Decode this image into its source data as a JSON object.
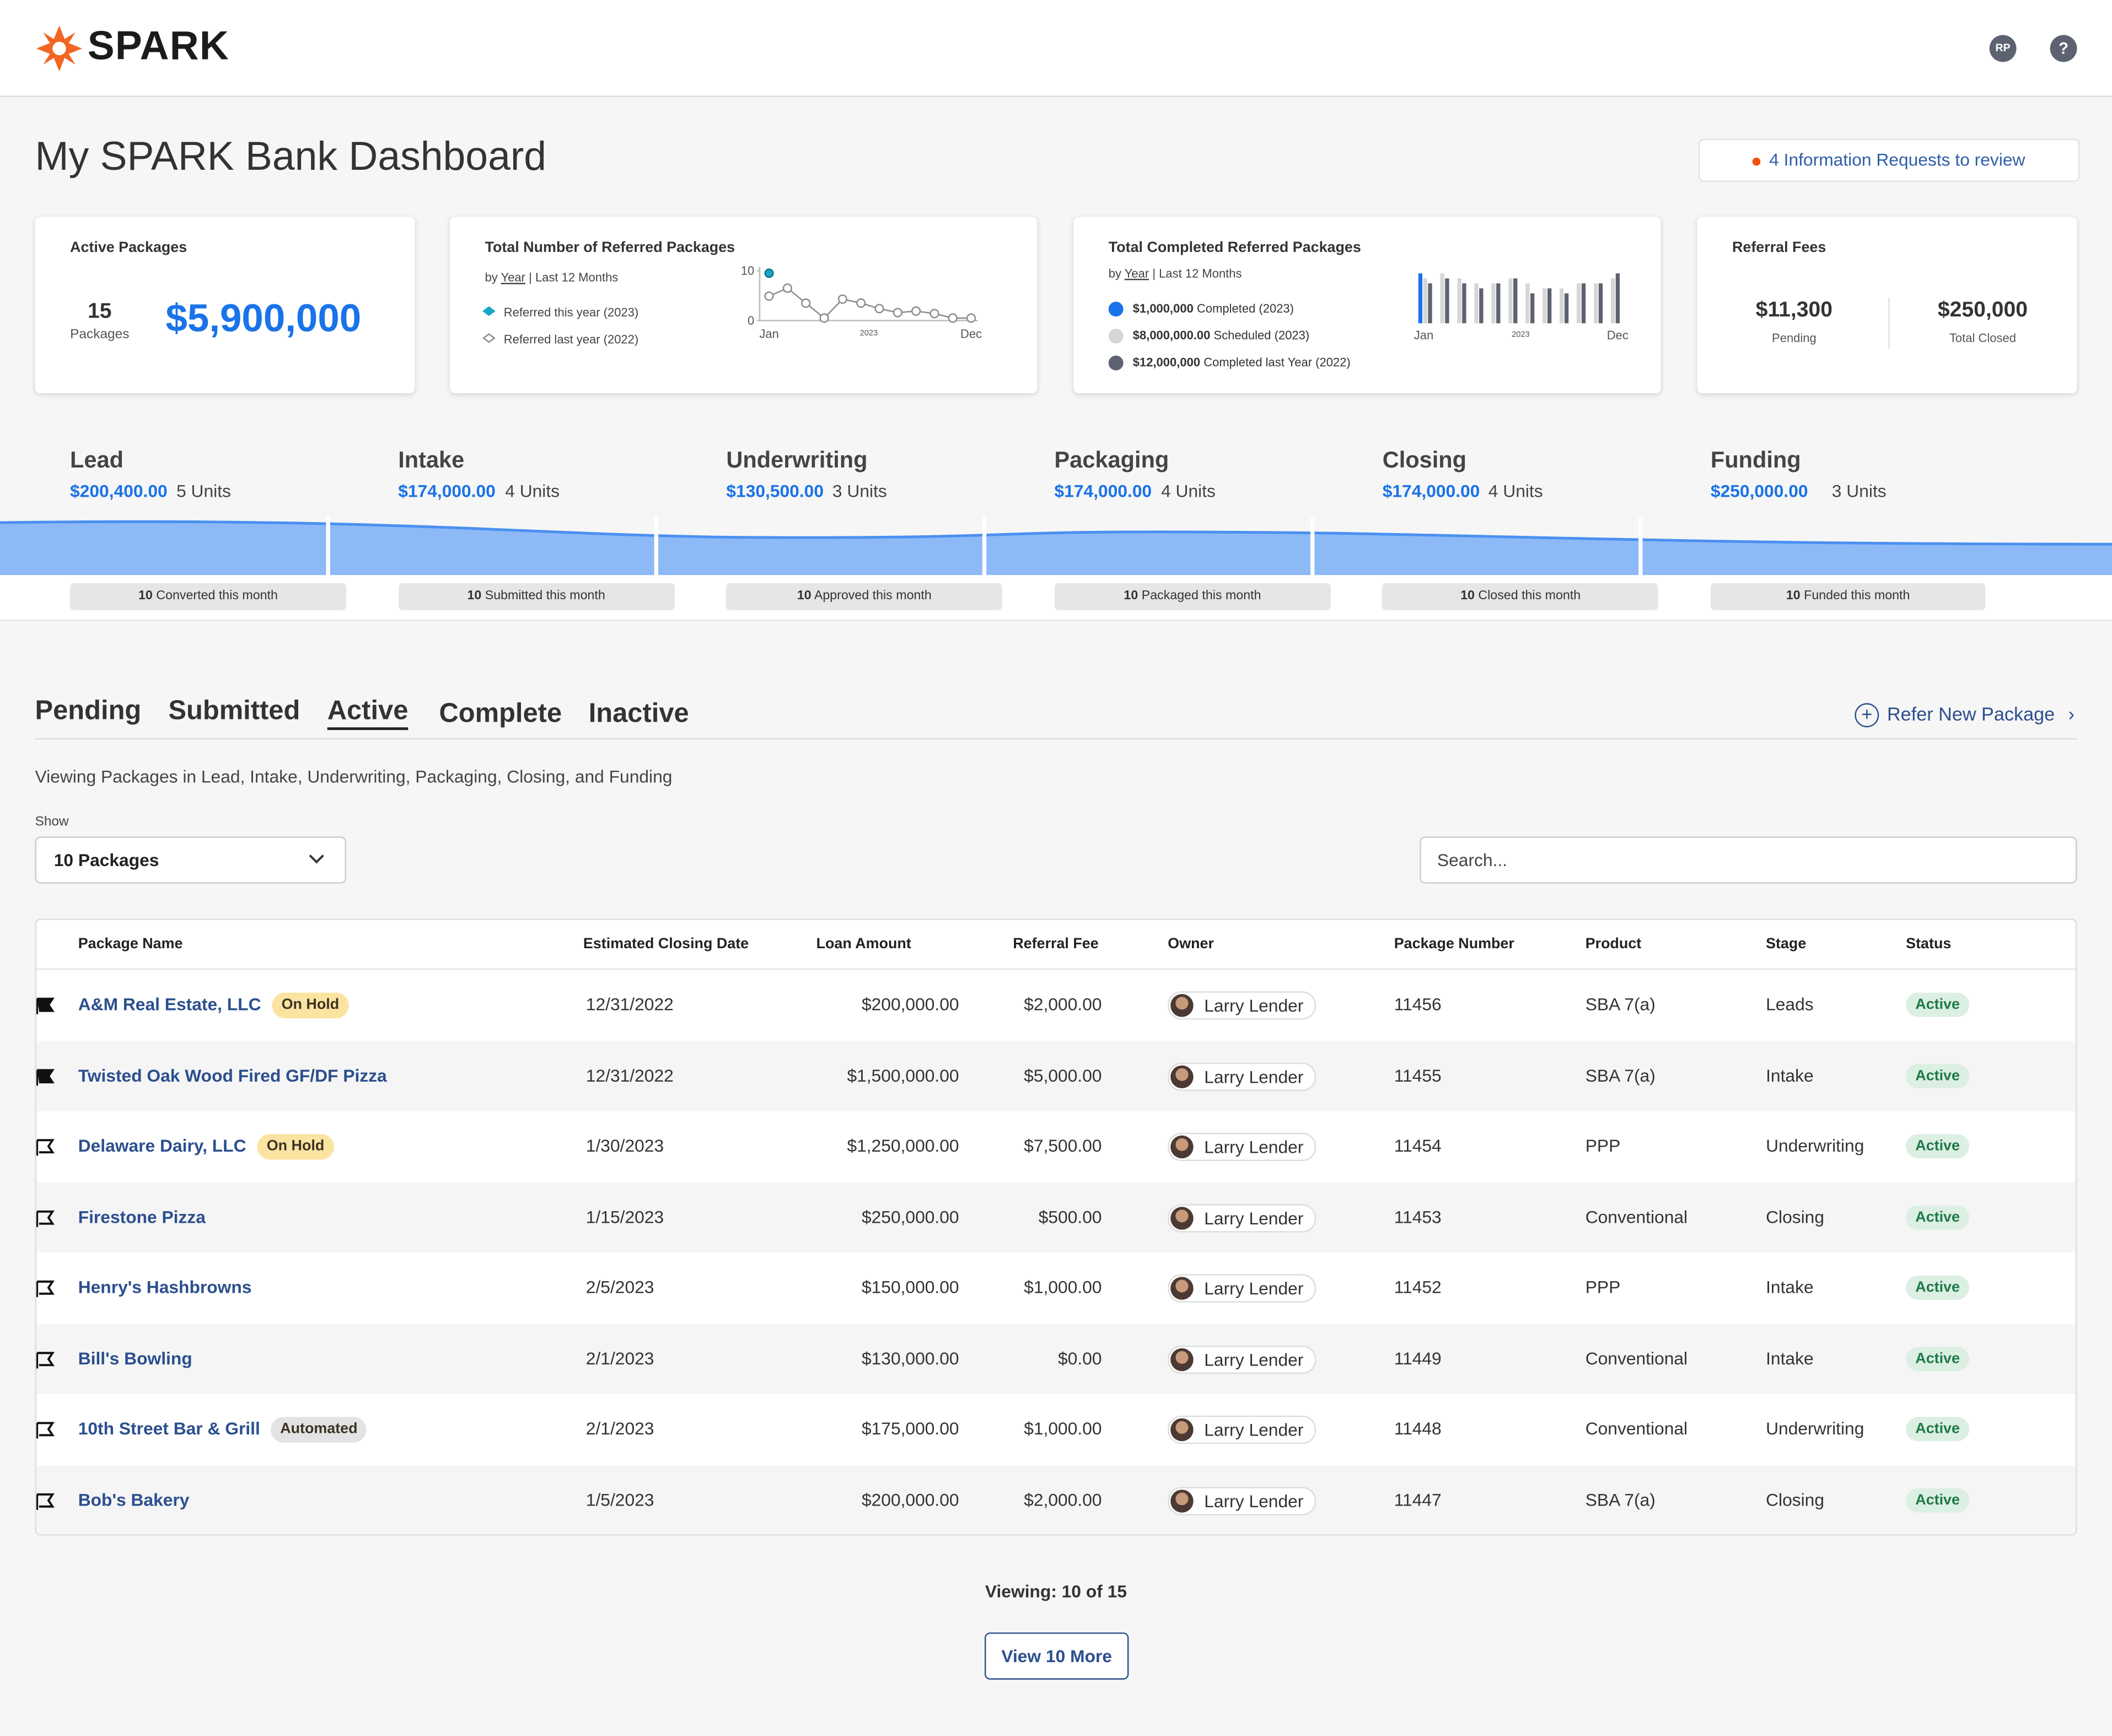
{
  "header": {
    "logo": "SPARK",
    "avatar": "RP",
    "help": "?"
  },
  "title": "My SPARK Bank Dashboard",
  "info_requests": {
    "count": "4",
    "label": "Information Requests to review"
  },
  "active_packages": {
    "title": "Active Packages",
    "count": "15",
    "count_label": "Packages",
    "amount": "$5,900,000"
  },
  "referred_packages": {
    "title": "Total Number of Referred Packages",
    "by": "by",
    "period_link": "Year",
    "period": "| Last 12 Months",
    "chart": {
      "type": "line",
      "ylim": [
        0,
        10
      ],
      "yticks": [
        0,
        10
      ],
      "x_labels": [
        "Jan",
        "2023",
        "Dec"
      ],
      "series": [
        {
          "name": "Referred this year (2023)",
          "color": "#19a7c9",
          "values": [
            9.5,
            null,
            null,
            null,
            null,
            null,
            null,
            null,
            null,
            null,
            null,
            null
          ]
        },
        {
          "name": "Referred last year (2022)",
          "color": "#8a8a8a",
          "values": [
            4.9,
            6.5,
            3.5,
            0.5,
            4.3,
            3.5,
            2.4,
            1.6,
            1.9,
            1.4,
            0.5,
            0.5
          ]
        }
      ]
    }
  },
  "completed_packages": {
    "title": "Total Completed Referred Packages",
    "by": "by",
    "period_link": "Year",
    "period": "| Last 12 Months",
    "chart": {
      "type": "bar",
      "x_labels": [
        "Jan",
        "2023",
        "Dec"
      ],
      "series": [
        {
          "name": "Completed (2023)",
          "amount": "$1,000,000",
          "color": "#1a73e8",
          "values": [
            10,
            null,
            null,
            null,
            null,
            null,
            null,
            null,
            null,
            null,
            null,
            null
          ]
        },
        {
          "name": "Scheduled (2023)",
          "amount": "$8,000,000.00",
          "color": "#d6d6d6",
          "values": [
            9,
            10,
            9,
            8,
            8,
            9,
            8,
            7,
            7,
            8,
            8,
            9
          ]
        },
        {
          "name": "Completed last Year (2022)",
          "amount": "$12,000,000",
          "color": "#5c6270",
          "values": [
            8,
            9,
            8,
            7,
            8,
            9,
            6,
            7,
            6,
            8,
            8,
            10
          ]
        }
      ]
    }
  },
  "referral_fees": {
    "title": "Referral Fees",
    "pending": "$11,300",
    "pending_label": "Pending",
    "closed": "$250,000",
    "closed_label": "Total Closed"
  },
  "pipeline": [
    {
      "stage": "Lead",
      "amount": "$200,400.00",
      "units": "5 Units",
      "count": "10",
      "note": "Converted this month"
    },
    {
      "stage": "Intake",
      "amount": "$174,000.00",
      "units": "4 Units",
      "count": "10",
      "note": "Submitted this month"
    },
    {
      "stage": "Underwriting",
      "amount": "$130,500.00",
      "units": "3 Units",
      "count": "10",
      "note": "Approved this month"
    },
    {
      "stage": "Packaging",
      "amount": "$174,000.00",
      "units": "4 Units",
      "count": "10",
      "note": "Packaged this month"
    },
    {
      "stage": "Closing",
      "amount": "$174,000.00",
      "units": "4 Units",
      "count": "10",
      "note": "Closed this month"
    },
    {
      "stage": "Funding",
      "amount": "$250,000.00",
      "units": "3 Units",
      "count": "10",
      "note": "Funded this month"
    }
  ],
  "tabs": {
    "items": [
      "Pending",
      "Submitted",
      "Active",
      "Complete",
      "Inactive"
    ],
    "active": 2,
    "refer": "Refer New Package"
  },
  "description": "Viewing Packages in Lead, Intake, Underwriting, Packaging, Closing, and Funding",
  "show": {
    "label": "Show",
    "value": "10 Packages"
  },
  "search_placeholder": "Search...",
  "table": {
    "columns": [
      "Package Name",
      "Estimated Closing Date",
      "Loan Amount",
      "Referral Fee",
      "Owner",
      "Package Number",
      "Product",
      "Stage",
      "Status"
    ],
    "rows": [
      {
        "flagged": true,
        "name": "A&M Real Estate, LLC",
        "badge": {
          "label": "On Hold",
          "color": "#fbe3a1"
        },
        "date": "12/31/2022",
        "loan": "$200,000.00",
        "fee": "$2,000.00",
        "owner": "Larry Lender",
        "number": "11456",
        "product": "SBA 7(a)",
        "stage": "Leads",
        "status": "Active"
      },
      {
        "flagged": true,
        "name": "Twisted Oak Wood Fired GF/DF Pizza",
        "date": "12/31/2022",
        "loan": "$1,500,000.00",
        "fee": "$5,000.00",
        "owner": "Larry Lender",
        "number": "11455",
        "product": "SBA 7(a)",
        "stage": "Intake",
        "status": "Active"
      },
      {
        "flagged": false,
        "name": "Delaware Dairy, LLC",
        "badge": {
          "label": "On Hold",
          "color": "#fbe3a1"
        },
        "date": "1/30/2023",
        "loan": "$1,250,000.00",
        "fee": "$7,500.00",
        "owner": "Larry Lender",
        "number": "11454",
        "product": "PPP",
        "stage": "Underwriting",
        "status": "Active"
      },
      {
        "flagged": false,
        "name": "Firestone Pizza",
        "date": "1/15/2023",
        "loan": "$250,000.00",
        "fee": "$500.00",
        "owner": "Larry Lender",
        "number": "11453",
        "product": "Conventional",
        "stage": "Closing",
        "status": "Active"
      },
      {
        "flagged": false,
        "name": "Henry's Hashbrowns",
        "date": "2/5/2023",
        "loan": "$150,000.00",
        "fee": "$1,000.00",
        "owner": "Larry Lender",
        "number": "11452",
        "product": "PPP",
        "stage": "Intake",
        "status": "Active"
      },
      {
        "flagged": false,
        "name": "Bill's Bowling",
        "date": "2/1/2023",
        "loan": "$130,000.00",
        "fee": "$0.00",
        "owner": "Larry Lender",
        "number": "11449",
        "product": "Conventional",
        "stage": "Intake",
        "status": "Active"
      },
      {
        "flagged": false,
        "name": "10th Street Bar & Grill",
        "badge": {
          "label": "Automated",
          "color": "#e3e3e3"
        },
        "date": "2/1/2023",
        "loan": "$175,000.00",
        "fee": "$1,000.00",
        "owner": "Larry Lender",
        "number": "11448",
        "product": "Conventional",
        "stage": "Underwriting",
        "status": "Active"
      },
      {
        "flagged": false,
        "name": "Bob's Bakery",
        "date": "1/5/2023",
        "loan": "$200,000.00",
        "fee": "$2,000.00",
        "owner": "Larry Lender",
        "number": "11447",
        "product": "SBA 7(a)",
        "stage": "Closing",
        "status": "Active"
      }
    ]
  },
  "footer": {
    "viewing": "Viewing: 10 of 15",
    "button": "View 10 More"
  }
}
